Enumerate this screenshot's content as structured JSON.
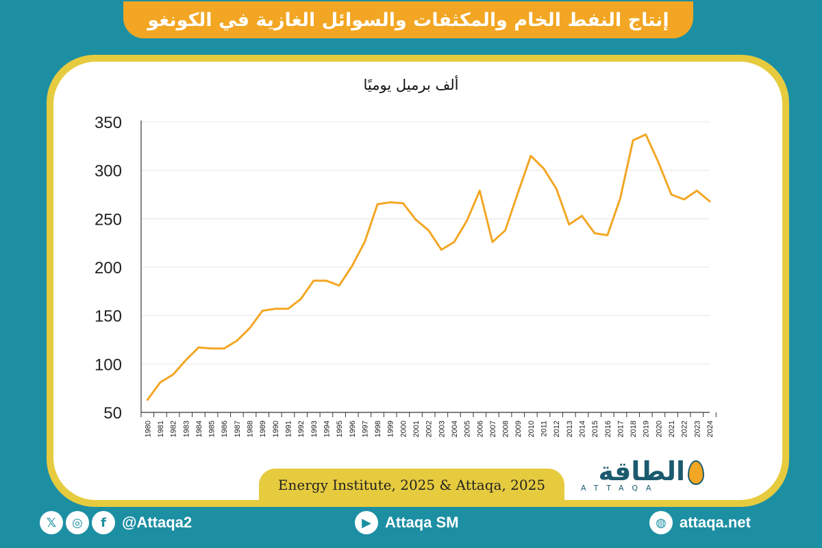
{
  "header": {
    "title": "إنتاج النفط الخام والمكثفات والسوائل الغازية في الكونغو"
  },
  "chart": {
    "unit_label": "ألف برميل يوميًا",
    "line_color": "#f2a623"
  },
  "source": {
    "text": "Energy Institute, 2025 & Attaqa, 2025"
  },
  "logo": {
    "name": "الطاقة",
    "sub": "ATTAQA"
  },
  "footer": {
    "social_handle": "@Attaqa2",
    "youtube": "Attaqa SM",
    "website": "attaqa.net"
  },
  "colors": {
    "background": "#1d8fa3",
    "accent": "#f2a623",
    "frame": "#e6cb3f"
  },
  "chart_data": {
    "type": "line",
    "title": "إنتاج النفط الخام والمكثفات والسوائل الغازية في الكونغو",
    "ylabel": "ألف برميل يوميًا",
    "ylim": [
      50,
      350
    ],
    "yticks": [
      50,
      100,
      150,
      200,
      250,
      300,
      350
    ],
    "grid": true,
    "x": [
      "1980",
      "1981",
      "1982",
      "1983",
      "1984",
      "1985",
      "1986",
      "1987",
      "1988",
      "1989",
      "1990",
      "1991",
      "1992",
      "1993",
      "1994",
      "1995",
      "1996",
      "1997",
      "1998",
      "1999",
      "2000",
      "2001",
      "2002",
      "2003",
      "2004",
      "2005",
      "2006",
      "2007",
      "2008",
      "2009",
      "2010",
      "2011",
      "2012",
      "2013",
      "2014",
      "2015",
      "2016",
      "2017",
      "2018",
      "2019",
      "2020",
      "2021",
      "2022",
      "2023",
      "2024"
    ],
    "series": [
      {
        "values": [
          63,
          81,
          89,
          104,
          117,
          116,
          116,
          124,
          137,
          155,
          157,
          157,
          167,
          186,
          186,
          181,
          201,
          226,
          265,
          267,
          266,
          249,
          238,
          218,
          226,
          248,
          279,
          226,
          238,
          277,
          315,
          302,
          281,
          244,
          253,
          235,
          233,
          271,
          331,
          337,
          308,
          275,
          270,
          279,
          268
        ]
      }
    ]
  }
}
